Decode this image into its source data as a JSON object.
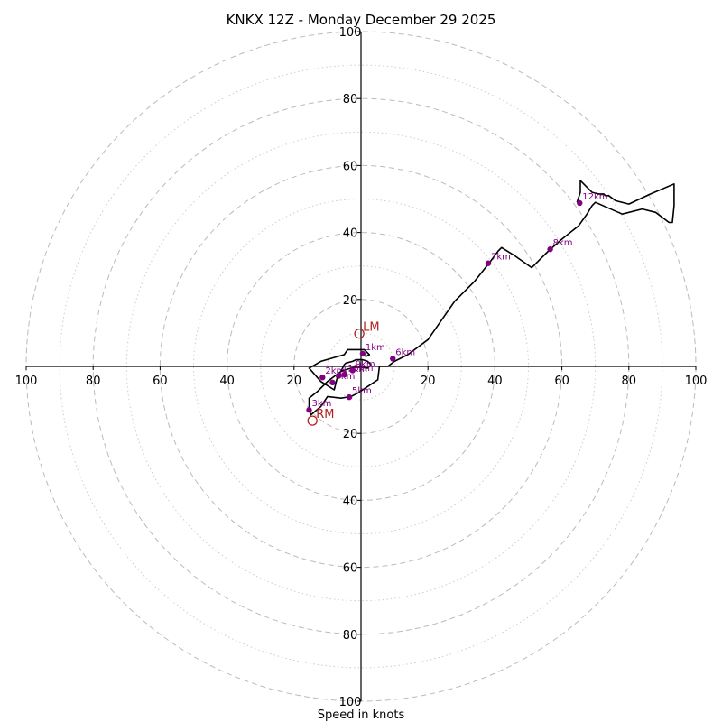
{
  "chart_data": {
    "type": "hodograph",
    "title": "KNKX 12Z - Monday December 29 2025",
    "xlabel": "Speed in knots",
    "units": "knots",
    "range": [
      -100,
      100
    ],
    "ring_interval_major": 20,
    "ring_interval_minor": 10,
    "x_tick_labels": [
      "100",
      "80",
      "60",
      "40",
      "20",
      "20",
      "40",
      "60",
      "80",
      "100"
    ],
    "x_tick_values": [
      -100,
      -80,
      -60,
      -40,
      -20,
      20,
      40,
      60,
      80,
      100
    ],
    "y_tick_labels": [
      "100",
      "80",
      "60",
      "40",
      "20",
      "20",
      "40",
      "60",
      "80",
      "100"
    ],
    "y_tick_values": [
      100,
      80,
      60,
      40,
      20,
      -20,
      -40,
      -60,
      -80,
      -100
    ],
    "hodograph": [
      [
        0.5,
        3.5
      ],
      [
        1.5,
        3
      ],
      [
        2.5,
        3.5
      ],
      [
        1,
        5
      ],
      [
        -4,
        5
      ],
      [
        -5,
        3.5
      ],
      [
        -12,
        1.5
      ],
      [
        -15.5,
        -0.5
      ],
      [
        -12,
        -4.5
      ],
      [
        -8,
        -7
      ],
      [
        -7,
        -3
      ],
      [
        -6,
        -1.5
      ],
      [
        -5,
        0.5
      ],
      [
        -4.5,
        1
      ],
      [
        -2.5,
        1.5
      ],
      [
        -1.5,
        2
      ],
      [
        0.5,
        2
      ],
      [
        2,
        1.5
      ],
      [
        3,
        0.5
      ],
      [
        2,
        -0.5
      ],
      [
        0,
        -0.3
      ],
      [
        -2,
        -0.3
      ],
      [
        -4,
        -0.8
      ],
      [
        -6,
        -1.5
      ],
      [
        -8,
        -3
      ],
      [
        -10,
        -4.5
      ],
      [
        -11.5,
        -6
      ],
      [
        -13,
        -7.5
      ],
      [
        -15.5,
        -9.5
      ],
      [
        -15.5,
        -12.5
      ],
      [
        -15,
        -14.5
      ],
      [
        -12,
        -12
      ],
      [
        -10,
        -9
      ],
      [
        -6,
        -9.5
      ],
      [
        -3,
        -9
      ],
      [
        -1,
        -8
      ],
      [
        5,
        -4
      ],
      [
        5.5,
        0
      ],
      [
        8,
        0
      ],
      [
        10,
        1.5
      ],
      [
        14,
        3.5
      ],
      [
        20,
        8
      ],
      [
        28,
        19.5
      ],
      [
        34,
        25.5
      ],
      [
        38,
        30.5
      ],
      [
        41,
        34.5
      ],
      [
        42,
        35.5
      ],
      [
        46,
        33
      ],
      [
        51,
        29.5
      ],
      [
        54,
        32.5
      ],
      [
        56,
        34.5
      ],
      [
        60,
        38
      ],
      [
        65,
        42
      ],
      [
        67.5,
        45.5
      ],
      [
        69,
        48
      ],
      [
        70,
        49
      ],
      [
        78,
        45.5
      ],
      [
        84,
        47
      ],
      [
        88,
        46
      ],
      [
        92,
        43
      ],
      [
        93,
        43
      ],
      [
        93.5,
        48
      ],
      [
        93.5,
        54.5
      ],
      [
        86.5,
        51.5
      ],
      [
        80,
        48.5
      ],
      [
        76,
        49.5
      ],
      [
        74,
        51
      ],
      [
        73,
        51
      ],
      [
        72.5,
        51.5
      ],
      [
        71,
        51.5
      ],
      [
        69,
        52
      ],
      [
        66,
        55
      ],
      [
        65.5,
        55.5
      ],
      [
        65.5,
        52
      ],
      [
        64.5,
        49
      ]
    ],
    "height_markers": [
      {
        "label": "1km",
        "u": 0.5,
        "v": 3.8
      },
      {
        "label": "2km",
        "u": -11.5,
        "v": -3.3
      },
      {
        "label": "3km",
        "u": -15.5,
        "v": -13
      },
      {
        "label": "4km",
        "u": -8.5,
        "v": -4.8
      },
      {
        "label": "5km",
        "u": -3.5,
        "v": -9.2
      },
      {
        "label": "6km",
        "u": 9.5,
        "v": 2.3
      },
      {
        "label": "7km",
        "u": 38,
        "v": 30.8
      },
      {
        "label": "8km",
        "u": 56.5,
        "v": 35
      },
      {
        "label": "12km",
        "u": 65.3,
        "v": 48.8
      },
      {
        "label": "9km",
        "u": -2.5,
        "v": -1.2
      },
      {
        "label": "10km",
        "u": -4.8,
        "v": -2.4
      },
      {
        "label": "11km",
        "u": -6.5,
        "v": -2.7
      }
    ],
    "storm_motion": [
      {
        "label": "LM",
        "u": -0.5,
        "v": 9.8
      },
      {
        "label": "RM",
        "u": -14.5,
        "v": -16.2
      }
    ]
  }
}
